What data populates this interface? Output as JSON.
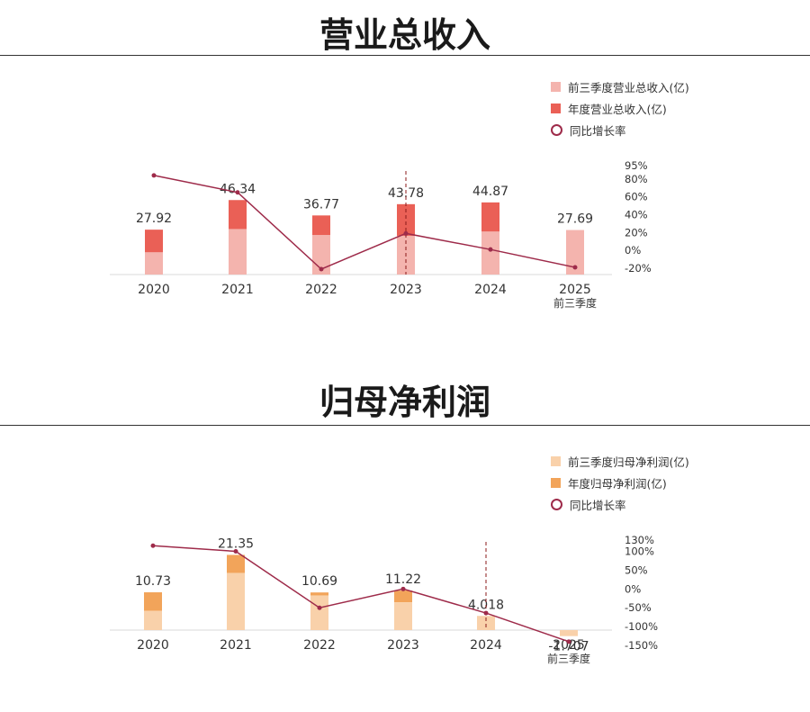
{
  "colors": {
    "revenue_q3": "#f4b4ae",
    "revenue_annual": "#ea6056",
    "profit_q3": "#f9d1aa",
    "profit_annual": "#f2a45a",
    "growth_line": "#9e2b4a",
    "marker_line": "#8b1a1a"
  },
  "chart_data": [
    {
      "type": "bar",
      "title": "营业总收入",
      "categories": [
        "2020",
        "2021",
        "2022",
        "2023",
        "2024",
        "2025"
      ],
      "category_sublabels": [
        "",
        "",
        "",
        "",
        "",
        "前三季度"
      ],
      "legend": {
        "q3": "前三季度营业总收入(亿)",
        "annual": "年度营业总收入(亿)",
        "growth": "同比增长率"
      },
      "series": [
        {
          "name": "前三季度营业总收入(亿)",
          "values": [
            13.8,
            28.3,
            24.5,
            24.1,
            26.7,
            27.69
          ]
        },
        {
          "name": "年度营业总收入(亿)",
          "values": [
            27.92,
            46.34,
            36.77,
            43.78,
            44.87,
            null
          ]
        },
        {
          "name": "同比增长率",
          "values": [
            84,
            65,
            -21,
            19,
            1,
            -19
          ],
          "axis": "right"
        }
      ],
      "data_labels": [
        "27.92",
        "46.34",
        "36.77",
        "43.78",
        "44.87",
        "27.69"
      ],
      "y2_ticks": [
        "95%",
        "80%",
        "60%",
        "40%",
        "20%",
        "0%",
        "-20%"
      ],
      "y2_tick_values": [
        95,
        80,
        60,
        40,
        20,
        0,
        -20
      ],
      "ylim": [
        0,
        70
      ],
      "y2lim": [
        -20,
        95
      ],
      "highlight_category": "2023"
    },
    {
      "type": "bar",
      "title": "归母净利润",
      "categories": [
        "2020",
        "2021",
        "2022",
        "2023",
        "2024",
        "2025"
      ],
      "category_sublabels": [
        "",
        "",
        "",
        "",
        "",
        "前三季度"
      ],
      "legend": {
        "q3": "前三季度归母净利润(亿)",
        "annual": "年度归母净利润(亿)",
        "growth": "同比增长率"
      },
      "series": [
        {
          "name": "前三季度归母净利润(亿)",
          "values": [
            5.5,
            16.2,
            9.8,
            7.9,
            4.0,
            -1.707
          ]
        },
        {
          "name": "年度归母净利润(亿)",
          "values": [
            10.73,
            21.35,
            10.69,
            11.22,
            4.018,
            null
          ]
        },
        {
          "name": "同比增长率",
          "values": [
            115,
            100,
            -50,
            0,
            -64,
            -140
          ],
          "axis": "right"
        }
      ],
      "data_labels": [
        "10.73",
        "21.35",
        "10.69",
        "11.22",
        "4.018",
        "-1.707"
      ],
      "y2_ticks": [
        "130%",
        "100%",
        "50%",
        "0%",
        "-50%",
        "-100%",
        "-150%"
      ],
      "y2_tick_values": [
        130,
        100,
        50,
        0,
        -50,
        -100,
        -150
      ],
      "ylim": [
        -2.2,
        23
      ],
      "y2lim": [
        -150,
        130
      ],
      "highlight_category": "2024"
    }
  ]
}
